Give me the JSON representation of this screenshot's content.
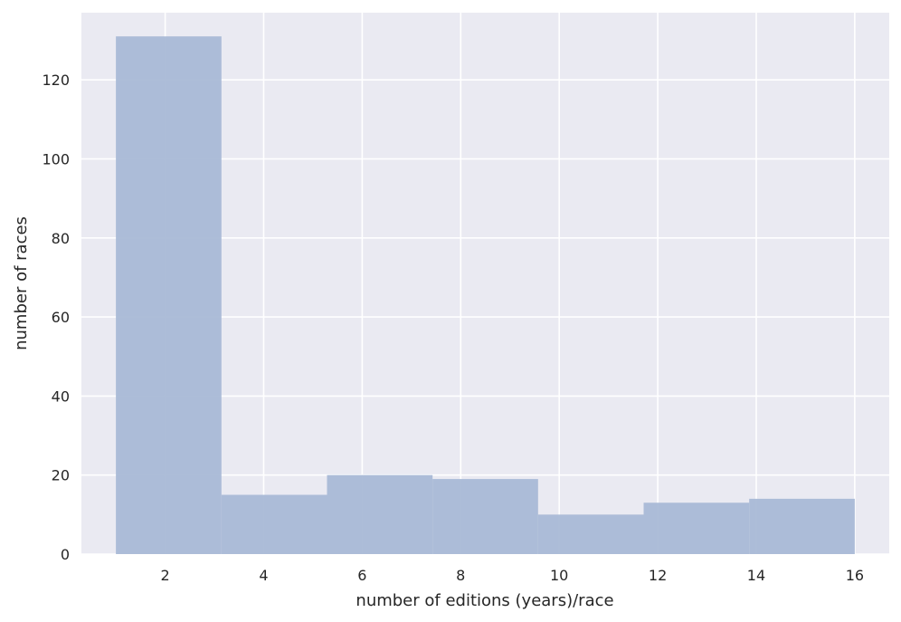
{
  "chart_data": {
    "type": "bar",
    "subtype": "histogram",
    "title": "",
    "xlabel": "number of editions (years)/race",
    "ylabel": "number of races",
    "bin_edges": [
      1,
      3.143,
      5.286,
      7.429,
      9.571,
      11.714,
      13.857,
      16
    ],
    "values": [
      131,
      15,
      20,
      19,
      10,
      13,
      14
    ],
    "xlim": [
      0.3,
      16.7
    ],
    "ylim": [
      0,
      137
    ],
    "x_ticks": [
      2,
      4,
      6,
      8,
      10,
      12,
      14,
      16
    ],
    "y_ticks": [
      0,
      20,
      40,
      60,
      80,
      100,
      120
    ],
    "grid": true,
    "colors": {
      "background": "#EAEAF2",
      "grid": "#FFFFFF",
      "bar": "#A9B9D6",
      "text": "#262626"
    }
  }
}
